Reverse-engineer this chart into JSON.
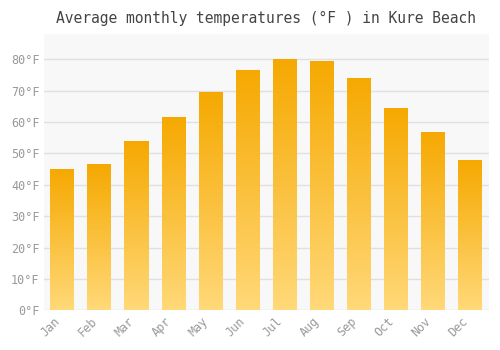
{
  "title": "Average monthly temperatures (°F ) in Kure Beach",
  "months": [
    "Jan",
    "Feb",
    "Mar",
    "Apr",
    "May",
    "Jun",
    "Jul",
    "Aug",
    "Sep",
    "Oct",
    "Nov",
    "Dec"
  ],
  "values": [
    45,
    46.5,
    54,
    61.5,
    69.5,
    76.5,
    80,
    79.5,
    74,
    64.5,
    57,
    48
  ],
  "bar_color_dark": "#F5A800",
  "bar_color_light": "#FFD878",
  "ylim": [
    0,
    88
  ],
  "yticks": [
    0,
    10,
    20,
    30,
    40,
    50,
    60,
    70,
    80
  ],
  "ytick_labels": [
    "0°F",
    "10°F",
    "20°F",
    "30°F",
    "40°F",
    "50°F",
    "60°F",
    "70°F",
    "80°F"
  ],
  "background_color": "#ffffff",
  "plot_bg_color": "#f8f8f8",
  "grid_color": "#e0e0e0",
  "title_fontsize": 10.5,
  "tick_fontsize": 8.5,
  "tick_color": "#999999",
  "title_color": "#444444"
}
